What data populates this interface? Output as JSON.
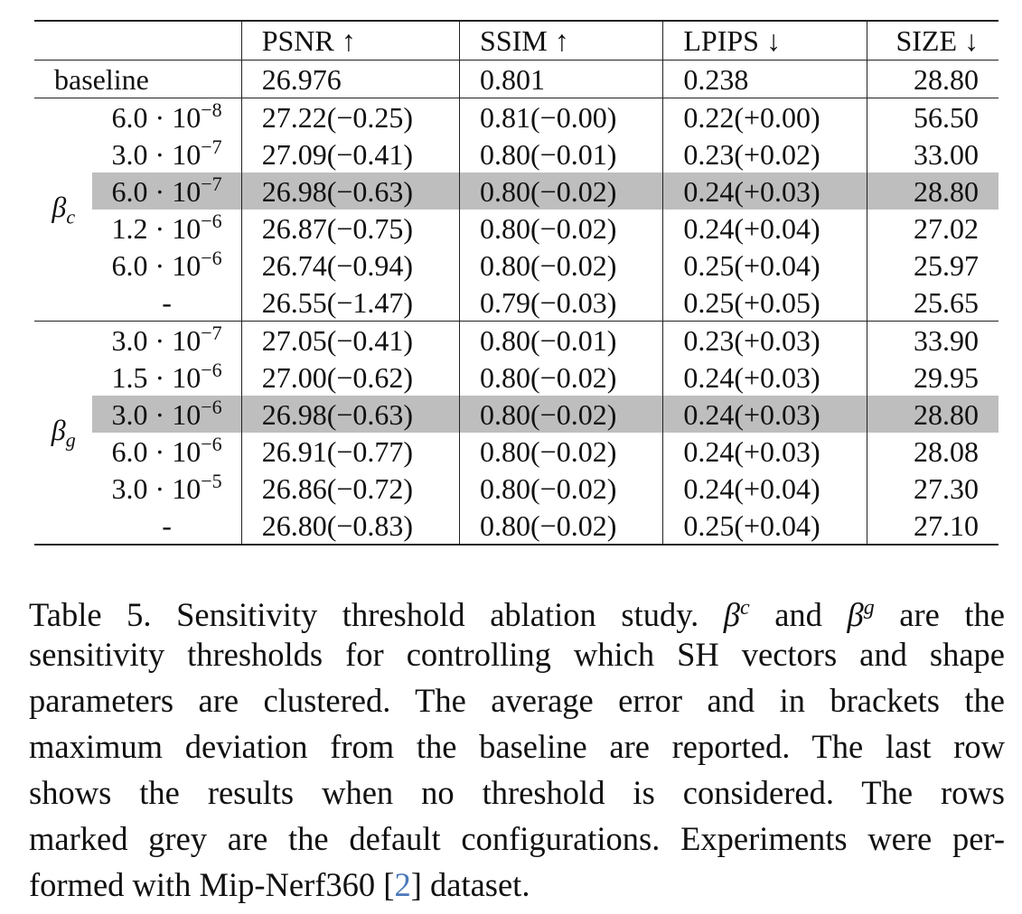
{
  "table": {
    "headers": [
      "PSNR ↑",
      "SSIM ↑",
      "LPIPS ↓",
      "SIZE ↓"
    ],
    "baseline": {
      "label": "baseline",
      "psnr": "26.976",
      "ssim": "0.801",
      "lpips": "0.238",
      "size": "28.80"
    },
    "groups": [
      {
        "symbol": "β",
        "subscript": "c",
        "rows": [
          {
            "mant": "6.0 · 10",
            "exp": "−8",
            "psnr": "27.22(−0.25)",
            "ssim": "0.81(−0.00)",
            "lpips": "0.22(+0.00)",
            "size": "56.50",
            "highlight": false
          },
          {
            "mant": "3.0 · 10",
            "exp": "−7",
            "psnr": "27.09(−0.41)",
            "ssim": "0.80(−0.01)",
            "lpips": "0.23(+0.02)",
            "size": "33.00",
            "highlight": false
          },
          {
            "mant": "6.0 · 10",
            "exp": "−7",
            "psnr": "26.98(−0.63)",
            "ssim": "0.80(−0.02)",
            "lpips": "0.24(+0.03)",
            "size": "28.80",
            "highlight": true
          },
          {
            "mant": "1.2 · 10",
            "exp": "−6",
            "psnr": "26.87(−0.75)",
            "ssim": "0.80(−0.02)",
            "lpips": "0.24(+0.04)",
            "size": "27.02",
            "highlight": false
          },
          {
            "mant": "6.0 · 10",
            "exp": "−6",
            "psnr": "26.74(−0.94)",
            "ssim": "0.80(−0.02)",
            "lpips": "0.25(+0.04)",
            "size": "25.97",
            "highlight": false
          },
          {
            "mant": "-",
            "exp": "",
            "psnr": "26.55(−1.47)",
            "ssim": "0.79(−0.03)",
            "lpips": "0.25(+0.05)",
            "size": "25.65",
            "highlight": false
          }
        ]
      },
      {
        "symbol": "β",
        "subscript": "g",
        "rows": [
          {
            "mant": "3.0 · 10",
            "exp": "−7",
            "psnr": "27.05(−0.41)",
            "ssim": "0.80(−0.01)",
            "lpips": "0.23(+0.03)",
            "size": "33.90",
            "highlight": false
          },
          {
            "mant": "1.5 · 10",
            "exp": "−6",
            "psnr": "27.00(−0.62)",
            "ssim": "0.80(−0.02)",
            "lpips": "0.24(+0.03)",
            "size": "29.95",
            "highlight": false
          },
          {
            "mant": "3.0 · 10",
            "exp": "−6",
            "psnr": "26.98(−0.63)",
            "ssim": "0.80(−0.02)",
            "lpips": "0.24(+0.03)",
            "size": "28.80",
            "highlight": true
          },
          {
            "mant": "6.0 · 10",
            "exp": "−6",
            "psnr": "26.91(−0.77)",
            "ssim": "0.80(−0.02)",
            "lpips": "0.24(+0.03)",
            "size": "28.08",
            "highlight": false
          },
          {
            "mant": "3.0 · 10",
            "exp": "−5",
            "psnr": "26.86(−0.72)",
            "ssim": "0.80(−0.02)",
            "lpips": "0.24(+0.04)",
            "size": "27.30",
            "highlight": false
          },
          {
            "mant": "-",
            "exp": "",
            "psnr": "26.80(−0.83)",
            "ssim": "0.80(−0.02)",
            "lpips": "0.25(+0.04)",
            "size": "27.10",
            "highlight": false
          }
        ]
      }
    ]
  },
  "caption": {
    "lines": [
      [
        "Table 5.  Sensitivity threshold ablation study.  ",
        {
          "math": "β",
          "sup": "c"
        },
        " and ",
        {
          "math": "β",
          "sup": "g"
        },
        " are the"
      ],
      [
        "sensitivity thresholds for controlling which SH vectors and shape"
      ],
      [
        "parameters are clustered.  The average error and in brackets the"
      ],
      [
        "maximum deviation from the baseline are reported. The last row"
      ],
      [
        "shows the results when no threshold is considered.  The rows"
      ],
      [
        "marked grey are the default configurations. Experiments were per-"
      ],
      [
        "formed with Mip-Nerf360 [",
        {
          "ref": "2"
        },
        "] dataset."
      ]
    ]
  }
}
